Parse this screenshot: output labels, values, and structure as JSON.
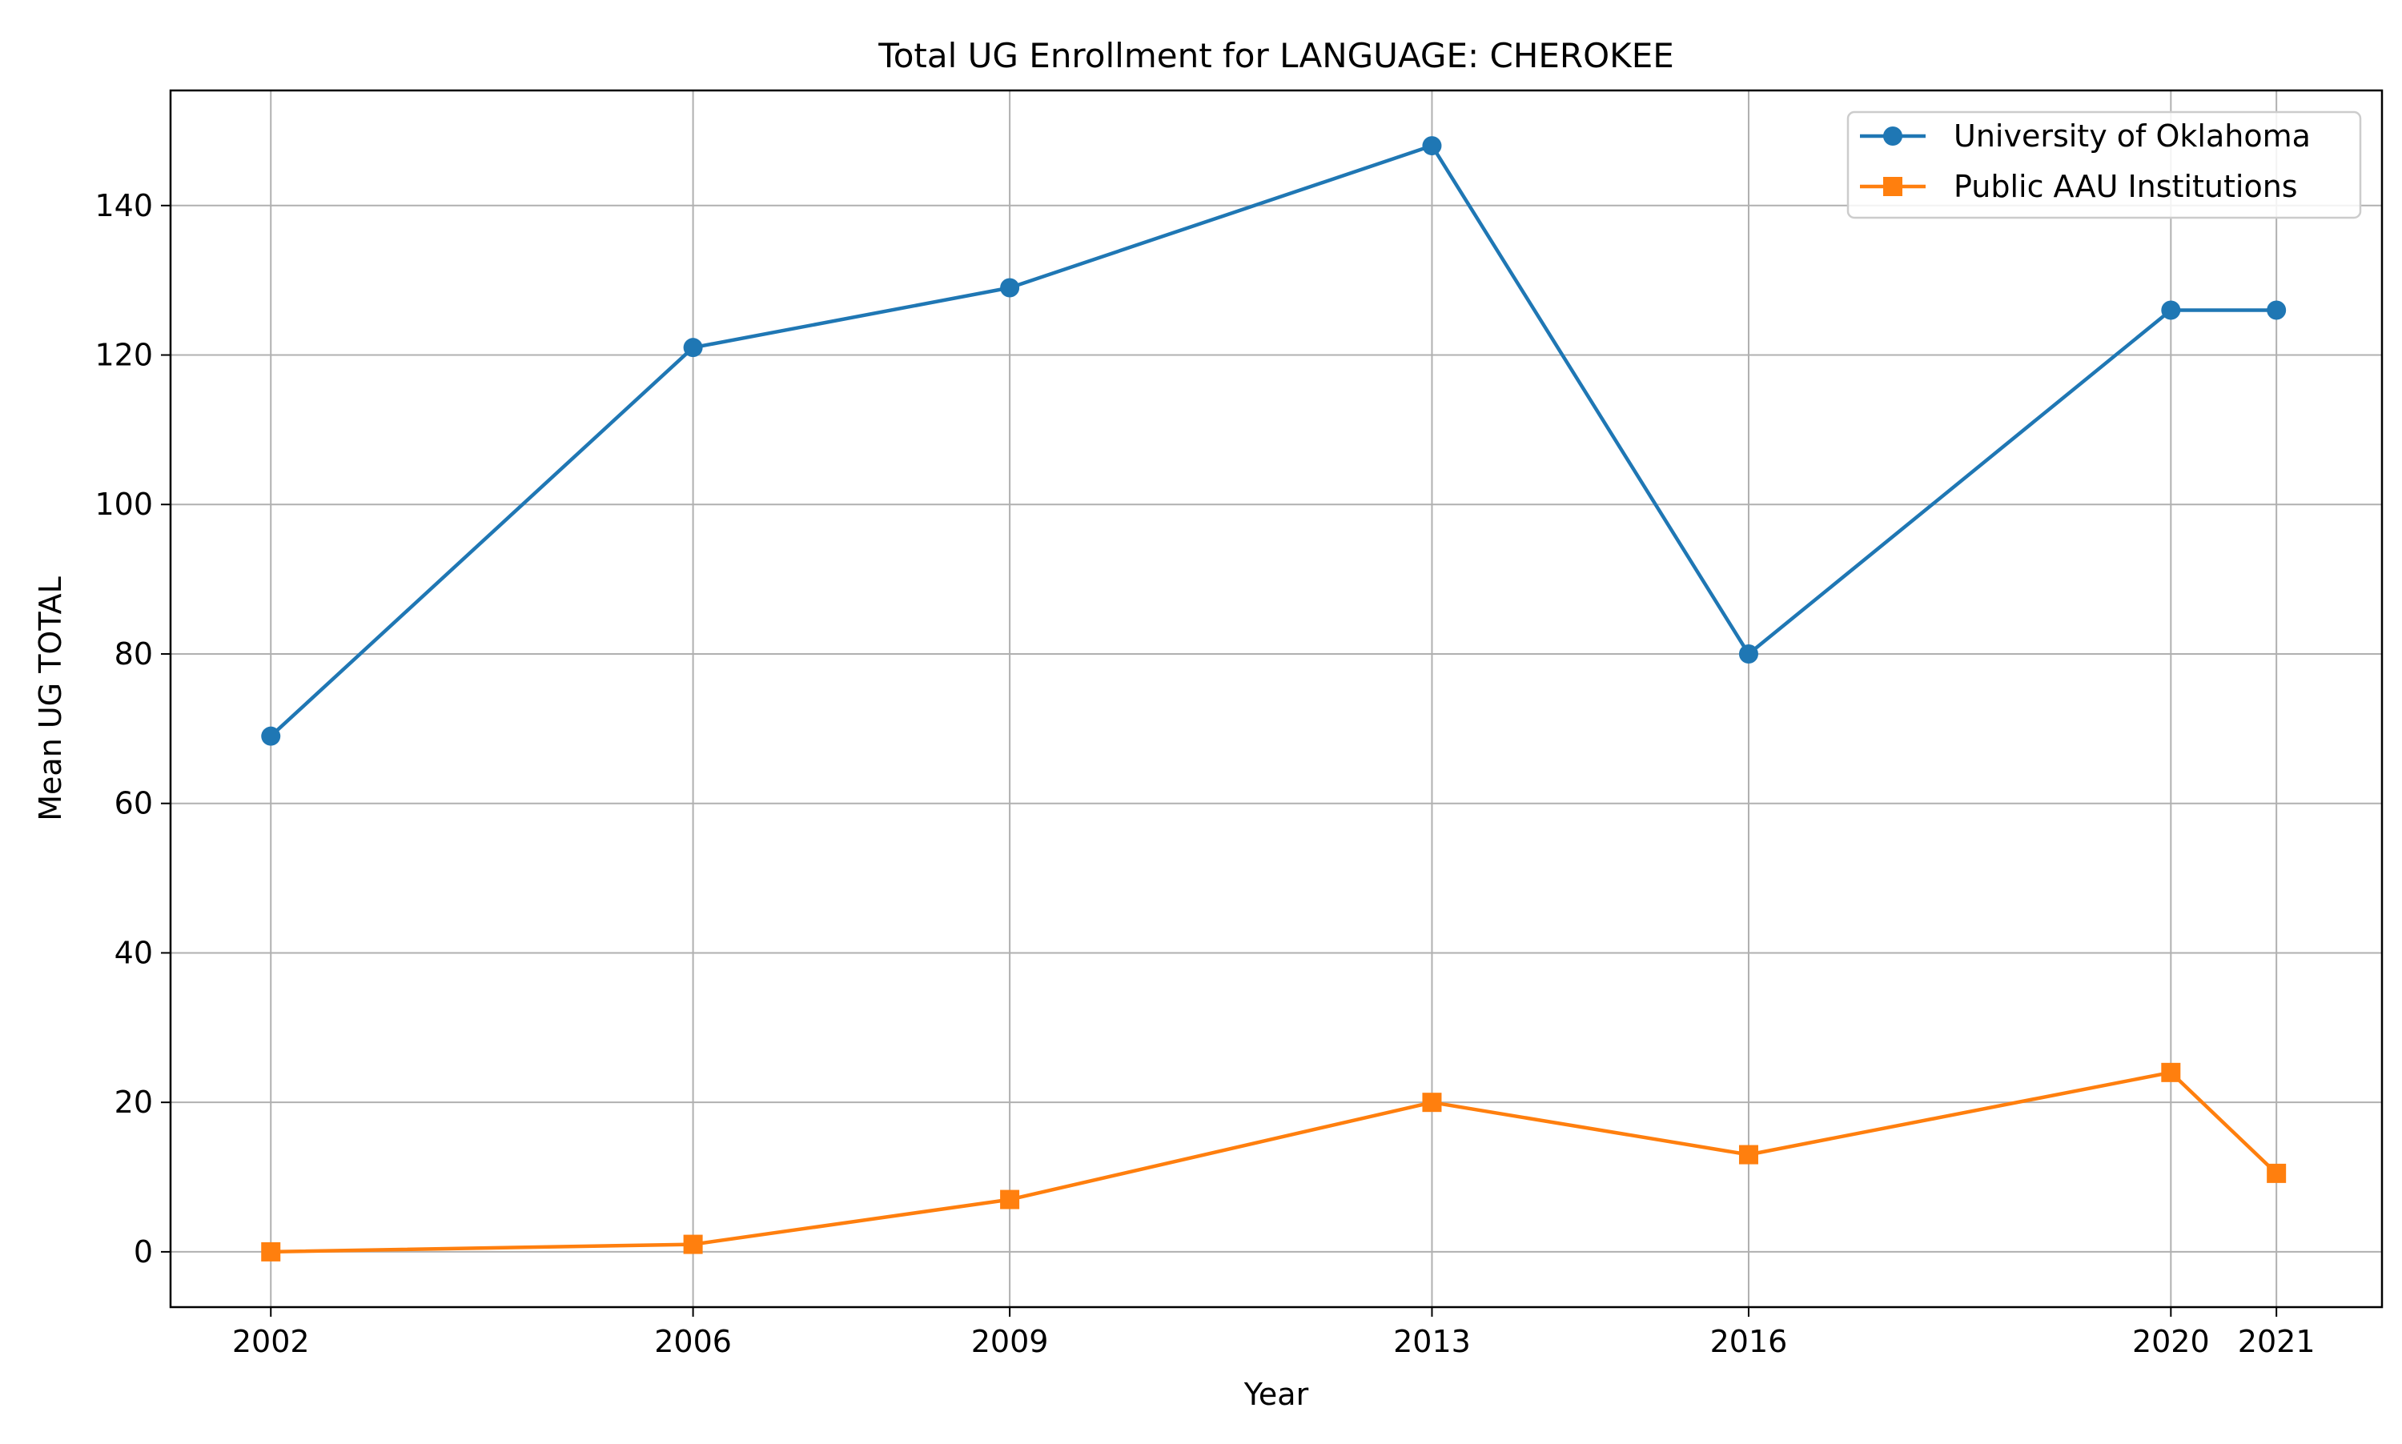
{
  "chart_data": {
    "type": "line",
    "title": "Total UG Enrollment for LANGUAGE: CHEROKEE",
    "xlabel": "Year",
    "ylabel": "Mean UG TOTAL",
    "x": [
      2002,
      2006,
      2009,
      2013,
      2016,
      2020,
      2021
    ],
    "x_tick_labels": [
      "2002",
      "2006",
      "2009",
      "2013",
      "2016",
      "2020",
      "2021"
    ],
    "xlim": [
      2001.05,
      2022.0
    ],
    "ylim": [
      -7.4,
      155.4
    ],
    "y_ticks": [
      0,
      20,
      40,
      60,
      80,
      100,
      120,
      140
    ],
    "grid": true,
    "legend_position": "top-right",
    "series": [
      {
        "name": "University of Oklahoma",
        "marker": "circle",
        "color": "#1f77b4",
        "values": [
          69,
          121,
          129,
          148,
          80,
          126,
          126
        ]
      },
      {
        "name": "Public AAU Institutions",
        "marker": "square",
        "color": "#ff7f0e",
        "values": [
          0,
          1,
          7,
          20,
          13,
          24,
          10.5
        ]
      }
    ]
  }
}
